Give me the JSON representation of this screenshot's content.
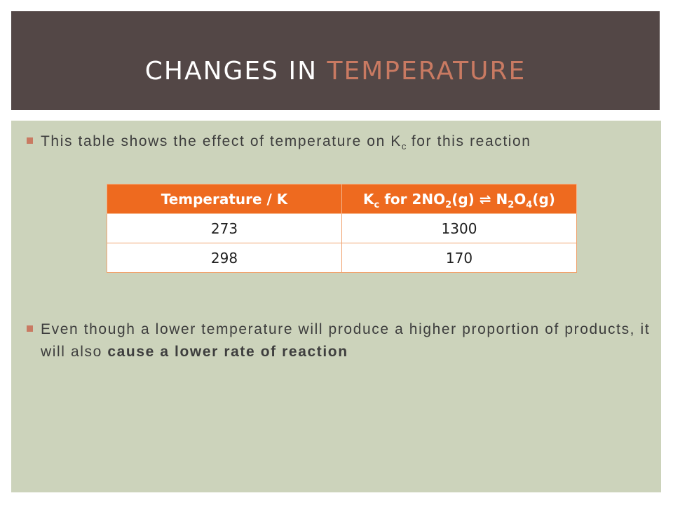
{
  "slide": {
    "title_main": "CHANGES IN ",
    "title_accent": "TEMPERATURE",
    "colors": {
      "title_bar": "#534746",
      "accent": "#c97a62",
      "content_bg": "#ccd3bb",
      "table_header": "#ee6a1f"
    }
  },
  "bullets": {
    "b1": {
      "text_before": "This table shows the effect of temperature on K",
      "subscript": "c",
      "text_after": " for this reaction"
    },
    "b2": {
      "text_plain": "Even though a lower temperature will produce a higher proportion of products, it will also ",
      "text_bold": "cause a lower rate of reaction"
    }
  },
  "table": {
    "header1": "Temperature / K",
    "header2": {
      "k": "K",
      "k_sub": "c",
      "for_text": " for 2NO",
      "no2_sub": "2",
      "mid": "(g) ⇌ N",
      "n_sub": "2",
      "o": "O",
      "o_sub": "4",
      "end": "(g)"
    },
    "rows": [
      {
        "temp": "273",
        "kc": "1300"
      },
      {
        "temp": "298",
        "kc": "170"
      }
    ]
  }
}
